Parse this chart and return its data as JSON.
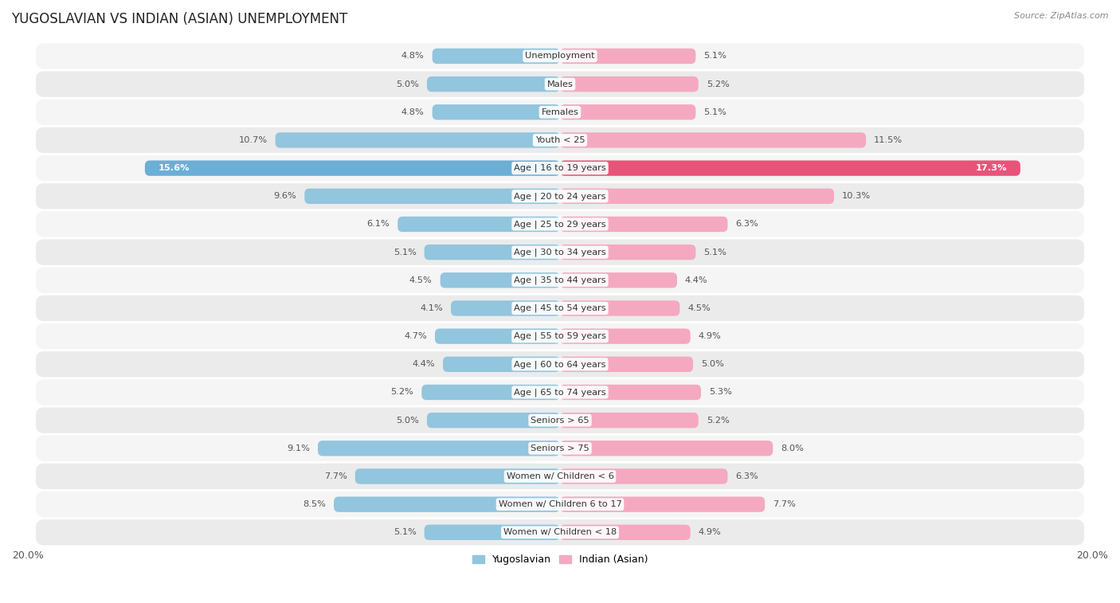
{
  "title": "YUGOSLAVIAN VS INDIAN (ASIAN) UNEMPLOYMENT",
  "source": "Source: ZipAtlas.com",
  "categories": [
    "Unemployment",
    "Males",
    "Females",
    "Youth < 25",
    "Age | 16 to 19 years",
    "Age | 20 to 24 years",
    "Age | 25 to 29 years",
    "Age | 30 to 34 years",
    "Age | 35 to 44 years",
    "Age | 45 to 54 years",
    "Age | 55 to 59 years",
    "Age | 60 to 64 years",
    "Age | 65 to 74 years",
    "Seniors > 65",
    "Seniors > 75",
    "Women w/ Children < 6",
    "Women w/ Children 6 to 17",
    "Women w/ Children < 18"
  ],
  "yugoslavian": [
    4.8,
    5.0,
    4.8,
    10.7,
    15.6,
    9.6,
    6.1,
    5.1,
    4.5,
    4.1,
    4.7,
    4.4,
    5.2,
    5.0,
    9.1,
    7.7,
    8.5,
    5.1
  ],
  "indian": [
    5.1,
    5.2,
    5.1,
    11.5,
    17.3,
    10.3,
    6.3,
    5.1,
    4.4,
    4.5,
    4.9,
    5.0,
    5.3,
    5.2,
    8.0,
    6.3,
    7.7,
    4.9
  ],
  "yugo_color": "#92c5de",
  "indian_color": "#f4a9c0",
  "yugo_highlight": "#6baed6",
  "indian_highlight": "#e8537a",
  "row_colors": [
    "#f5f5f5",
    "#ebebeb"
  ],
  "bg_color": "#ffffff",
  "max_val": 20.0,
  "legend_yugo": "Yugoslavian",
  "legend_indian": "Indian (Asian)",
  "highlight_idx": 4
}
